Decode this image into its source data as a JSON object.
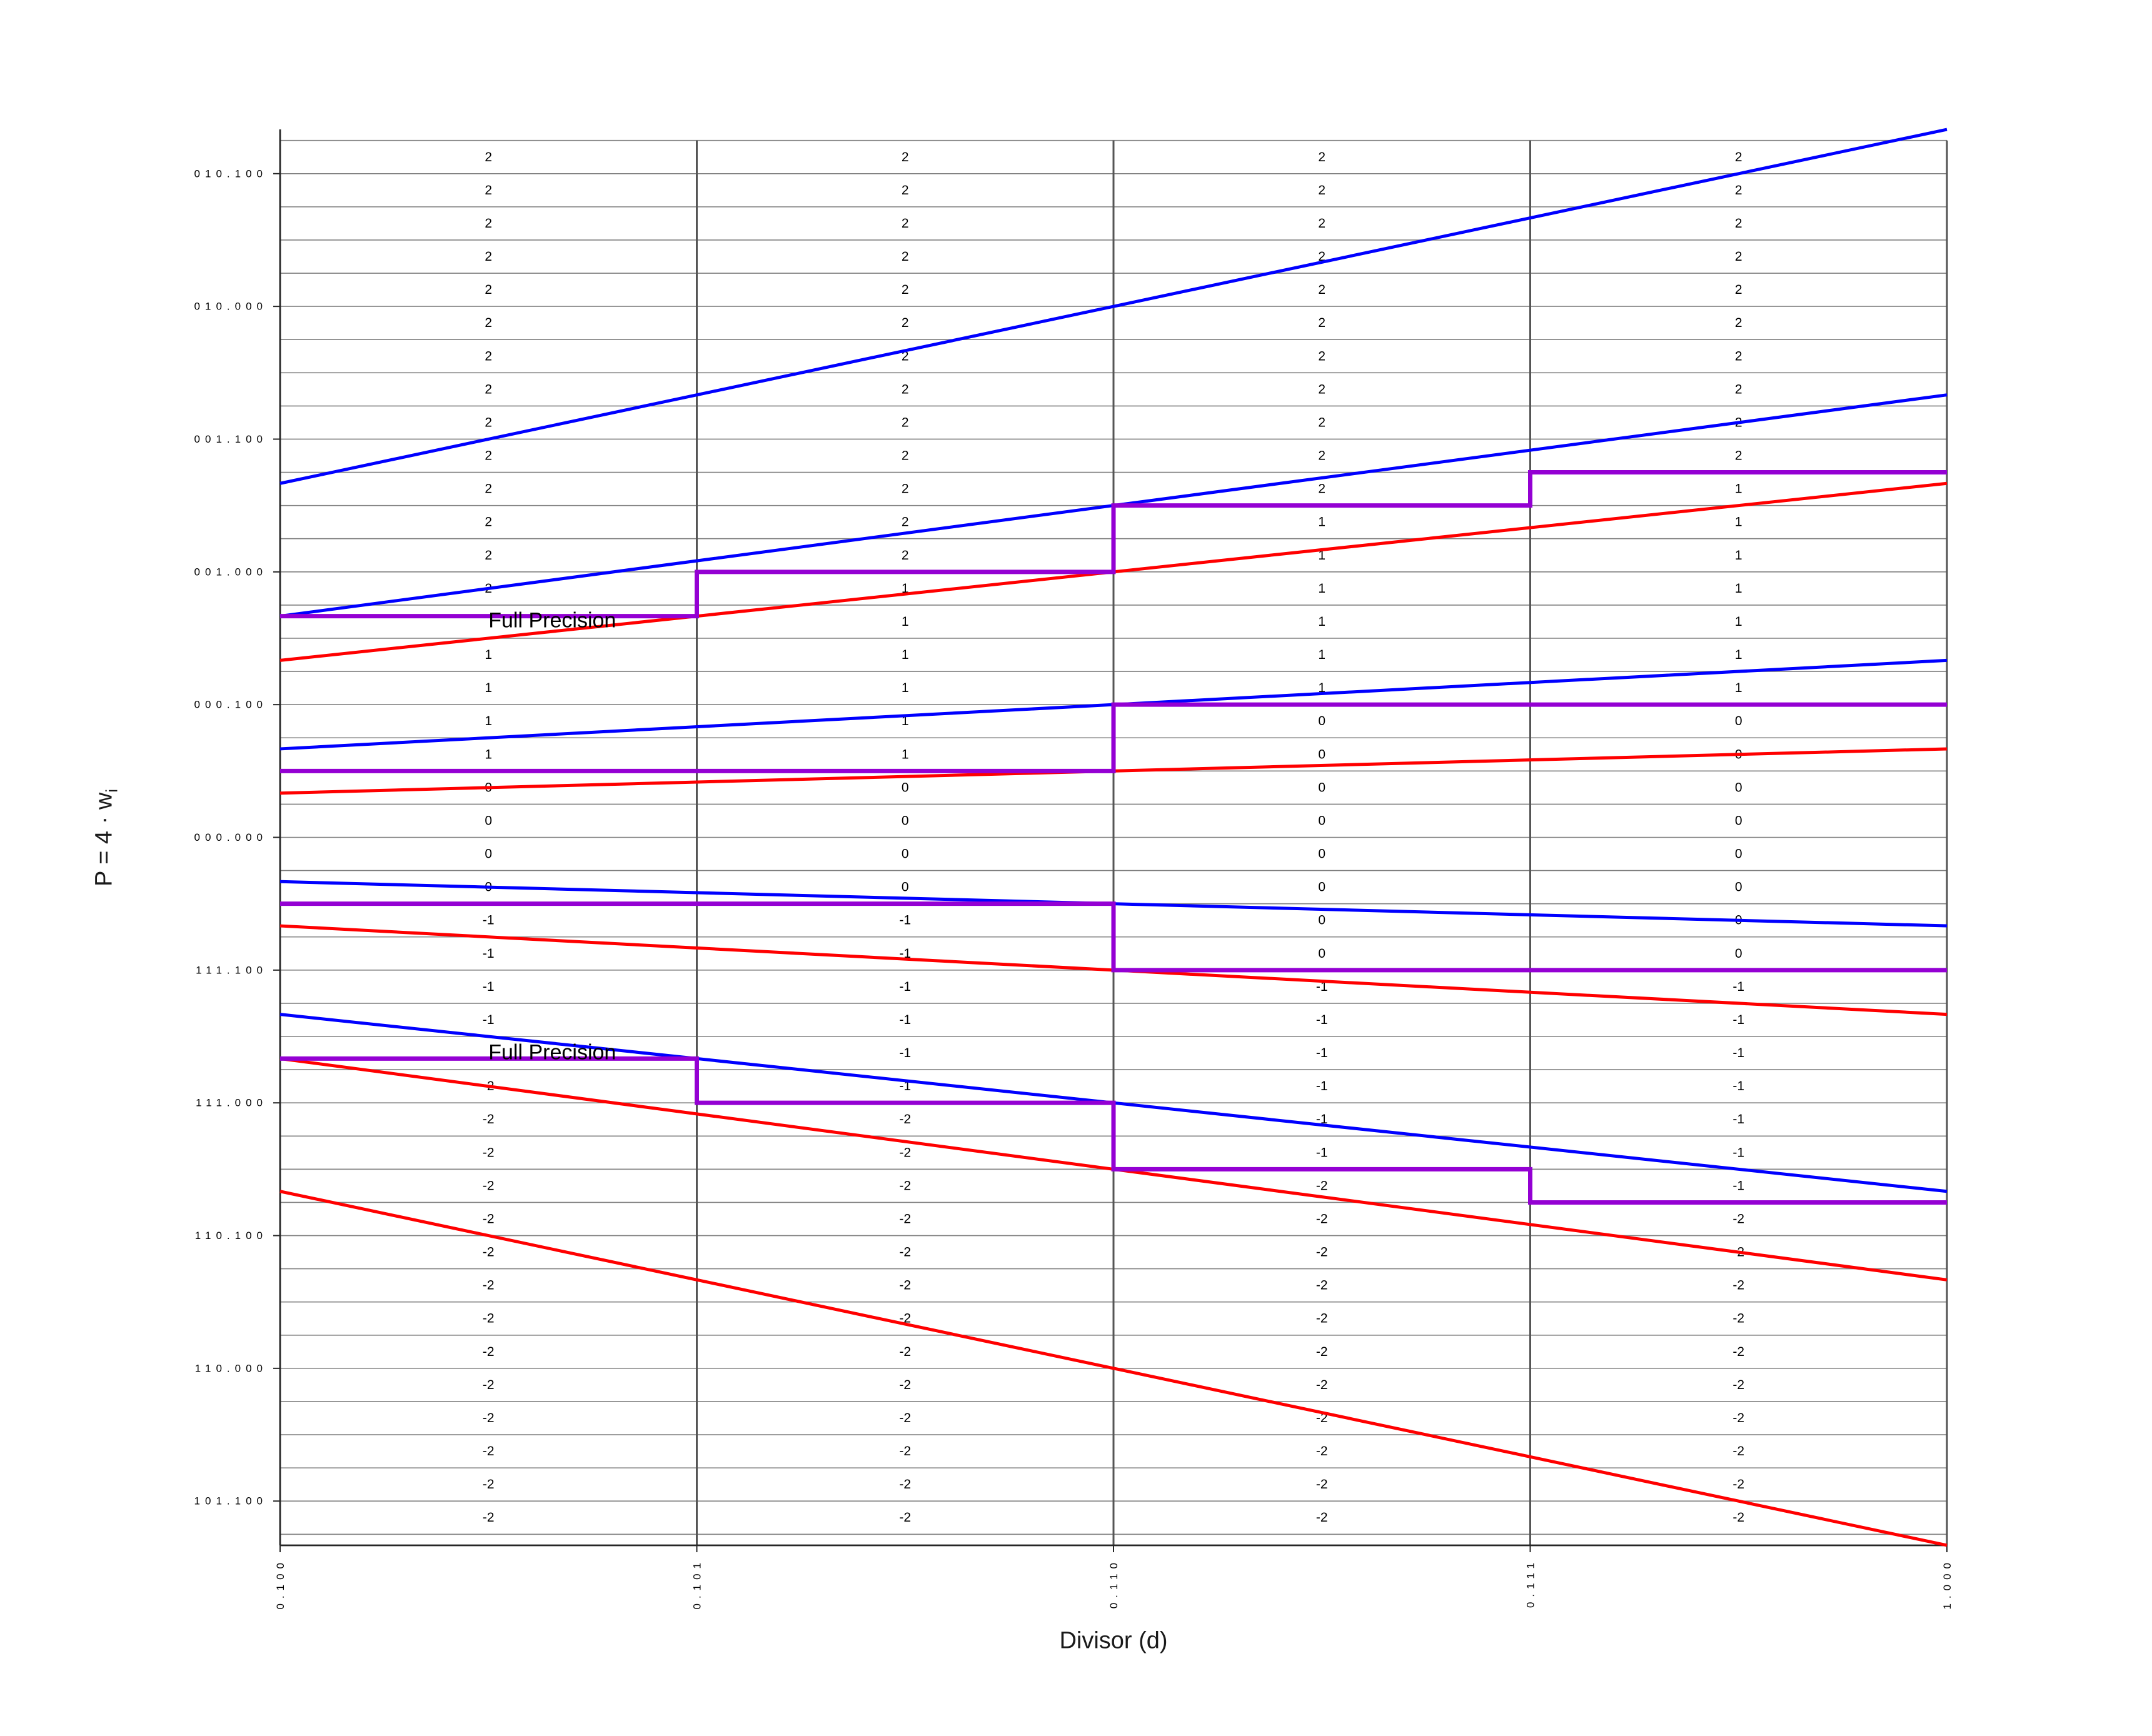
{
  "chart_data": {
    "type": "line",
    "title": "",
    "xlabel": "Divisor (d)",
    "ylabel": "P = 4 · w",
    "ylabel_sub": "i",
    "xlim": [
      0.5,
      1.0
    ],
    "ylim": [
      -2.6667,
      2.6667
    ],
    "grid": {
      "on": true,
      "h_step": 0.125,
      "h_min": -2.625,
      "h_max": 2.625,
      "v_lines": [
        0.625,
        0.75,
        0.875,
        1.0
      ]
    },
    "x_ticks": [
      {
        "d": 0.5,
        "label": "0.100"
      },
      {
        "d": 0.625,
        "label": "0.101"
      },
      {
        "d": 0.75,
        "label": "0.110"
      },
      {
        "d": 0.875,
        "label": "0.111"
      },
      {
        "d": 1.0,
        "label": "1.000"
      }
    ],
    "y_ticks": [
      {
        "p": 2.5,
        "label": "010.100"
      },
      {
        "p": 2.0,
        "label": "010.000"
      },
      {
        "p": 1.5,
        "label": "001.100"
      },
      {
        "p": 1.0,
        "label": "001.000"
      },
      {
        "p": 0.5,
        "label": "000.100"
      },
      {
        "p": 0.0,
        "label": "000.000"
      },
      {
        "p": -0.5,
        "label": "111.100"
      },
      {
        "p": -1.0,
        "label": "111.000"
      },
      {
        "p": -1.5,
        "label": "110.100"
      },
      {
        "p": -2.0,
        "label": "110.000"
      },
      {
        "p": -2.5,
        "label": "101.100"
      }
    ],
    "column_edges": [
      0.5,
      0.625,
      0.75,
      0.875,
      1.0
    ],
    "upper_bounds_blue": [
      {
        "digit": 2,
        "slope": 2.66667
      },
      {
        "digit": 1,
        "slope": 1.66667
      },
      {
        "digit": 0,
        "slope": 0.66667
      },
      {
        "digit": -1,
        "slope": -0.33333
      },
      {
        "digit": -2,
        "slope": -1.33333
      }
    ],
    "lower_bounds_red": [
      {
        "digit": 2,
        "slope": 1.33333
      },
      {
        "digit": 1,
        "slope": 0.33333
      },
      {
        "digit": 0,
        "slope": -0.66667
      },
      {
        "digit": -1,
        "slope": -1.66667
      },
      {
        "digit": -2,
        "slope": -2.66667
      }
    ],
    "selection_staircases": [
      {
        "boundary": "2/1",
        "levels": [
          0.83333,
          1.0,
          1.25,
          1.375
        ]
      },
      {
        "boundary": "1/0",
        "levels": [
          0.25,
          0.25,
          0.5,
          0.5
        ]
      },
      {
        "boundary": "0/-1",
        "levels": [
          -0.25,
          -0.25,
          -0.5,
          -0.5
        ]
      },
      {
        "boundary": "-1/-2",
        "levels": [
          -0.83333,
          -1.0,
          -1.25,
          -1.375
        ]
      }
    ],
    "annotations": [
      {
        "text": "Full Precision",
        "d": 0.5625,
        "p": 0.8125
      },
      {
        "text": "Full Precision",
        "d": 0.5625,
        "p": -0.8125
      }
    ],
    "digit_grid": {
      "row_center_start": 2.5625,
      "row_step": -0.125,
      "column_d_centers": [
        0.5625,
        0.6875,
        0.8125,
        0.9375
      ],
      "rows": [
        [
          2,
          2,
          2,
          2
        ],
        [
          2,
          2,
          2,
          2
        ],
        [
          2,
          2,
          2,
          2
        ],
        [
          2,
          2,
          2,
          2
        ],
        [
          2,
          2,
          2,
          2
        ],
        [
          2,
          2,
          2,
          2
        ],
        [
          2,
          2,
          2,
          2
        ],
        [
          2,
          2,
          2,
          2
        ],
        [
          2,
          2,
          2,
          2
        ],
        [
          2,
          2,
          2,
          2
        ],
        [
          2,
          2,
          2,
          1
        ],
        [
          2,
          2,
          1,
          1
        ],
        [
          2,
          2,
          1,
          1
        ],
        [
          2,
          1,
          1,
          1
        ],
        [
          null,
          1,
          1,
          1
        ],
        [
          1,
          1,
          1,
          1
        ],
        [
          1,
          1,
          1,
          1
        ],
        [
          1,
          1,
          0,
          0
        ],
        [
          1,
          1,
          0,
          0
        ],
        [
          0,
          0,
          0,
          0
        ],
        [
          0,
          0,
          0,
          0
        ],
        [
          0,
          0,
          0,
          0
        ],
        [
          0,
          0,
          0,
          0
        ],
        [
          -1,
          -1,
          0,
          0
        ],
        [
          -1,
          -1,
          0,
          0
        ],
        [
          -1,
          -1,
          -1,
          -1
        ],
        [
          -1,
          -1,
          -1,
          -1
        ],
        [
          null,
          -1,
          -1,
          -1
        ],
        [
          -2,
          -1,
          -1,
          -1
        ],
        [
          -2,
          -2,
          -1,
          -1
        ],
        [
          -2,
          -2,
          -1,
          -1
        ],
        [
          -2,
          -2,
          -2,
          -1
        ],
        [
          -2,
          -2,
          -2,
          -2
        ],
        [
          -2,
          -2,
          -2,
          -2
        ],
        [
          -2,
          -2,
          -2,
          -2
        ],
        [
          -2,
          -2,
          -2,
          -2
        ],
        [
          -2,
          -2,
          -2,
          -2
        ],
        [
          -2,
          -2,
          -2,
          -2
        ],
        [
          -2,
          -2,
          -2,
          -2
        ],
        [
          -2,
          -2,
          -2,
          -2
        ],
        [
          -2,
          -2,
          -2,
          -2
        ],
        [
          -2,
          -2,
          -2,
          -2
        ]
      ]
    },
    "colors": {
      "blue": "#0000FF",
      "red": "#FF0000",
      "purple": "#9400D3",
      "h_grid": "#808080",
      "v_grid": "#555555",
      "spine": "#262626",
      "text": "#000000"
    },
    "legend": null
  }
}
